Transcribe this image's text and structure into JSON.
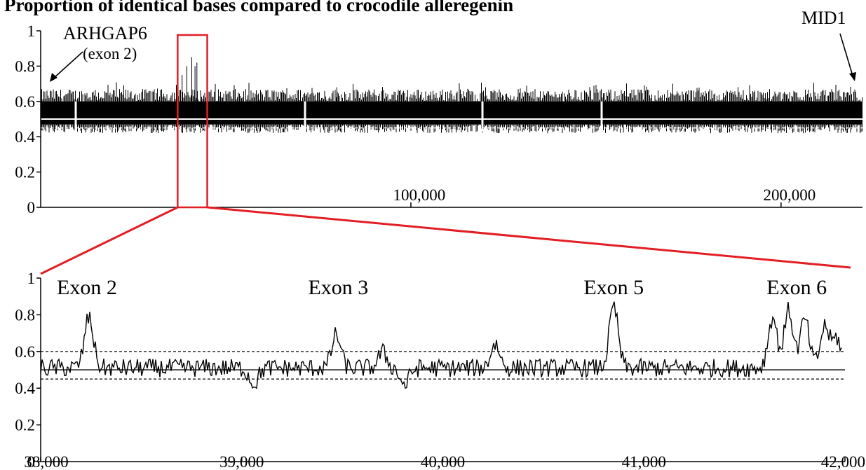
{
  "title": "Proportion of identical bases compared to crocodile alleregenin",
  "colors": {
    "signal": "#000000",
    "highlight": "#e31e24",
    "mean_line": "#ffffff"
  },
  "chart_data": [
    {
      "type": "line",
      "panel": "overview",
      "ylim": [
        0,
        1
      ],
      "xlim": [
        0,
        222000
      ],
      "yticks": [
        "0",
        "0.2",
        "0.4",
        "0.6",
        "0.8",
        "1"
      ],
      "ytick_values": [
        0,
        0.2,
        0.4,
        0.6,
        0.8,
        1
      ],
      "xticks": [
        "100,000",
        "200,000"
      ],
      "xtick_values": [
        100000,
        200000
      ],
      "reference_lines": {
        "mean": 0.5,
        "lower": 0.45
      },
      "band": [
        0.47,
        0.6
      ],
      "annotations": [
        {
          "label": "ARHGAP6",
          "sub": "(exon 2)",
          "x": 3000,
          "y": 0.7
        },
        {
          "label": "MID1",
          "x": 220000,
          "y": 0.7
        }
      ],
      "highlight_region": [
        37000,
        45000
      ],
      "peaks": [
        {
          "x": 38200,
          "y": 0.75
        },
        {
          "x": 39500,
          "y": 0.8
        },
        {
          "x": 40800,
          "y": 0.85
        },
        {
          "x": 41700,
          "y": 0.8
        },
        {
          "x": 42200,
          "y": 0.82
        },
        {
          "x": 80000,
          "y": 0.68
        }
      ]
    },
    {
      "type": "line",
      "panel": "detail",
      "ylim": [
        0,
        1
      ],
      "xlim": [
        38000,
        42000
      ],
      "yticks": [
        "0",
        "0.2",
        "0.4",
        "0.6",
        "0.8",
        "1"
      ],
      "ytick_values": [
        0,
        0.2,
        0.4,
        0.6,
        0.8,
        1
      ],
      "xticks": [
        "38,000",
        "39,000",
        "40,000",
        "41,000",
        "42,000"
      ],
      "xtick_values": [
        38000,
        39000,
        40000,
        41000,
        42000
      ],
      "reference_lines": {
        "mean": 0.5,
        "upper": 0.6,
        "lower": 0.45
      },
      "annotations": [
        {
          "label": "Exon 2",
          "x": 38230
        },
        {
          "label": "Exon 3",
          "x": 39480
        },
        {
          "label": "Exon 5",
          "x": 40850
        },
        {
          "label": "Exon 6",
          "x": 41760
        }
      ],
      "peaks": [
        {
          "x": 38240,
          "y": 0.8
        },
        {
          "x": 39470,
          "y": 0.7
        },
        {
          "x": 39700,
          "y": 0.6
        },
        {
          "x": 40260,
          "y": 0.65
        },
        {
          "x": 40850,
          "y": 0.86
        },
        {
          "x": 41640,
          "y": 0.8
        },
        {
          "x": 41720,
          "y": 0.84
        },
        {
          "x": 41800,
          "y": 0.79
        },
        {
          "x": 41900,
          "y": 0.75
        },
        {
          "x": 41960,
          "y": 0.68
        }
      ],
      "dips": [
        {
          "x": 39060,
          "y": 0.42
        },
        {
          "x": 39810,
          "y": 0.41
        }
      ]
    }
  ]
}
